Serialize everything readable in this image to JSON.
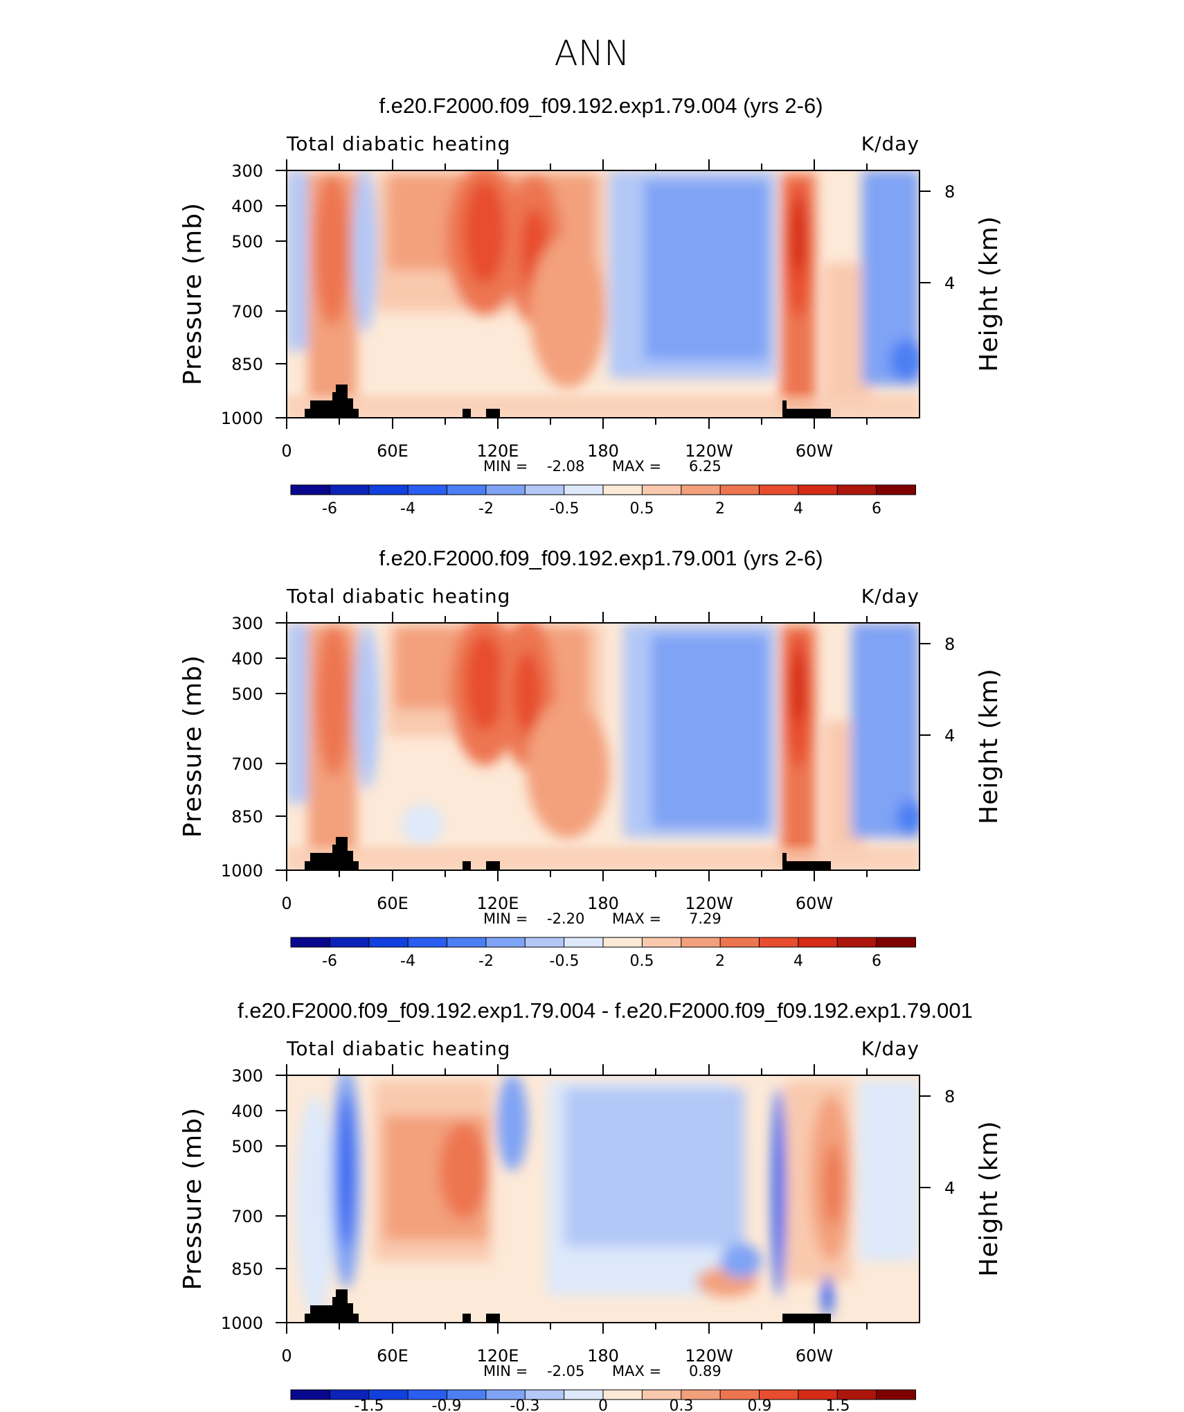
{
  "figure_title": "ANN",
  "colors": {
    "land_mask": "#000000",
    "colorbar_abs": [
      "#08088e",
      "#0b23b8",
      "#1240de",
      "#2a5ef0",
      "#4b7ff3",
      "#7fa3f5",
      "#b2c8f7",
      "#dde9fa",
      "#fde9d7",
      "#f9c9ae",
      "#f3a07c",
      "#ed7651",
      "#e74d2e",
      "#d52b17",
      "#ad160d",
      "#800000"
    ],
    "colorbar_diff": [
      "#08088e",
      "#0b23b8",
      "#1240de",
      "#2a5ef0",
      "#4b7ff3",
      "#7fa3f5",
      "#b2c8f7",
      "#dde9fa",
      "#fde9d7",
      "#f9c9ae",
      "#f3a07c",
      "#ed7651",
      "#e74d2e",
      "#d52b17",
      "#ad160d",
      "#800000"
    ]
  },
  "chart_data": [
    {
      "type": "heatmap",
      "title": "f.e20.F2000.f09_f09.192.exp1.79.004 (yrs 2-6)",
      "left_label": "Total diabatic heating",
      "right_label": "K/day",
      "xlabel": "",
      "ylabel": "Pressure (mb)",
      "ylabel_right": "Height (km)",
      "x_ticks": [
        "0",
        "60E",
        "120E",
        "180",
        "120W",
        "60W"
      ],
      "y_ticks": [
        "300",
        "400",
        "500",
        "700",
        "850",
        "1000"
      ],
      "y_ticks_right": [
        "8",
        "4"
      ],
      "stats": {
        "min_label": "MIN =",
        "min": "-2.08",
        "max_label": "MAX =",
        "max": "6.25"
      },
      "colorbar_labels": [
        "-6",
        "-4",
        "-2",
        "-0.5",
        "0.5",
        "2",
        "4",
        "6"
      ],
      "features": [
        {
          "lon": 35,
          "p": 550,
          "value": 3.5
        },
        {
          "lon": 45,
          "p": 900,
          "value": -0.8
        },
        {
          "lon": 110,
          "p": 450,
          "value": 5.5
        },
        {
          "lon": 140,
          "p": 550,
          "value": 4.5
        },
        {
          "lon": 155,
          "p": 700,
          "value": 2.0
        },
        {
          "lon": 225,
          "p": 500,
          "value": -1.5
        },
        {
          "lon": 290,
          "p": 500,
          "value": 6.25
        },
        {
          "lon": 335,
          "p": 500,
          "value": -1.2
        }
      ]
    },
    {
      "type": "heatmap",
      "title": "f.e20.F2000.f09_f09.192.exp1.79.001 (yrs 2-6)",
      "left_label": "Total diabatic heating",
      "right_label": "K/day",
      "xlabel": "",
      "ylabel": "Pressure (mb)",
      "ylabel_right": "Height (km)",
      "x_ticks": [
        "0",
        "60E",
        "120E",
        "180",
        "120W",
        "60W"
      ],
      "y_ticks": [
        "300",
        "400",
        "500",
        "700",
        "850",
        "1000"
      ],
      "y_ticks_right": [
        "8",
        "4"
      ],
      "stats": {
        "min_label": "MIN =",
        "min": "-2.20",
        "max_label": "MAX =",
        "max": "7.29"
      },
      "colorbar_labels": [
        "-6",
        "-4",
        "-2",
        "-0.5",
        "0.5",
        "2",
        "4",
        "6"
      ],
      "features": [
        {
          "lon": 35,
          "p": 550,
          "value": 3.5
        },
        {
          "lon": 45,
          "p": 600,
          "value": -0.8
        },
        {
          "lon": 110,
          "p": 450,
          "value": 5.5
        },
        {
          "lon": 135,
          "p": 500,
          "value": 5.0
        },
        {
          "lon": 160,
          "p": 700,
          "value": 2.5
        },
        {
          "lon": 235,
          "p": 500,
          "value": -1.5
        },
        {
          "lon": 290,
          "p": 500,
          "value": 7.29
        },
        {
          "lon": 335,
          "p": 550,
          "value": -1.2
        }
      ]
    },
    {
      "type": "heatmap",
      "title": "f.e20.F2000.f09_f09.192.exp1.79.004 - f.e20.F2000.f09_f09.192.exp1.79.001",
      "left_label": "Total diabatic heating",
      "right_label": "K/day",
      "xlabel": "",
      "ylabel": "Pressure (mb)",
      "ylabel_right": "Height (km)",
      "x_ticks": [
        "0",
        "60E",
        "120E",
        "180",
        "120W",
        "60W"
      ],
      "y_ticks": [
        "300",
        "400",
        "500",
        "700",
        "850",
        "1000"
      ],
      "y_ticks_right": [
        "8",
        "4"
      ],
      "stats": {
        "min_label": "MIN =",
        "min": "-2.05",
        "max_label": "MAX =",
        "max": "0.89"
      },
      "colorbar_labels": [
        "-1.5",
        "-0.9",
        "-0.3",
        "0",
        "0.3",
        "0.9",
        "1.5"
      ],
      "features": [
        {
          "lon": 37,
          "p": 500,
          "value": -1.5
        },
        {
          "lon": 70,
          "p": 500,
          "value": 0.7
        },
        {
          "lon": 100,
          "p": 600,
          "value": 0.6
        },
        {
          "lon": 125,
          "p": 450,
          "value": -0.8
        },
        {
          "lon": 200,
          "p": 600,
          "value": -0.5
        },
        {
          "lon": 262,
          "p": 500,
          "value": -2.05
        },
        {
          "lon": 310,
          "p": 650,
          "value": 0.89
        },
        {
          "lon": 330,
          "p": 600,
          "value": -0.3
        }
      ]
    }
  ]
}
